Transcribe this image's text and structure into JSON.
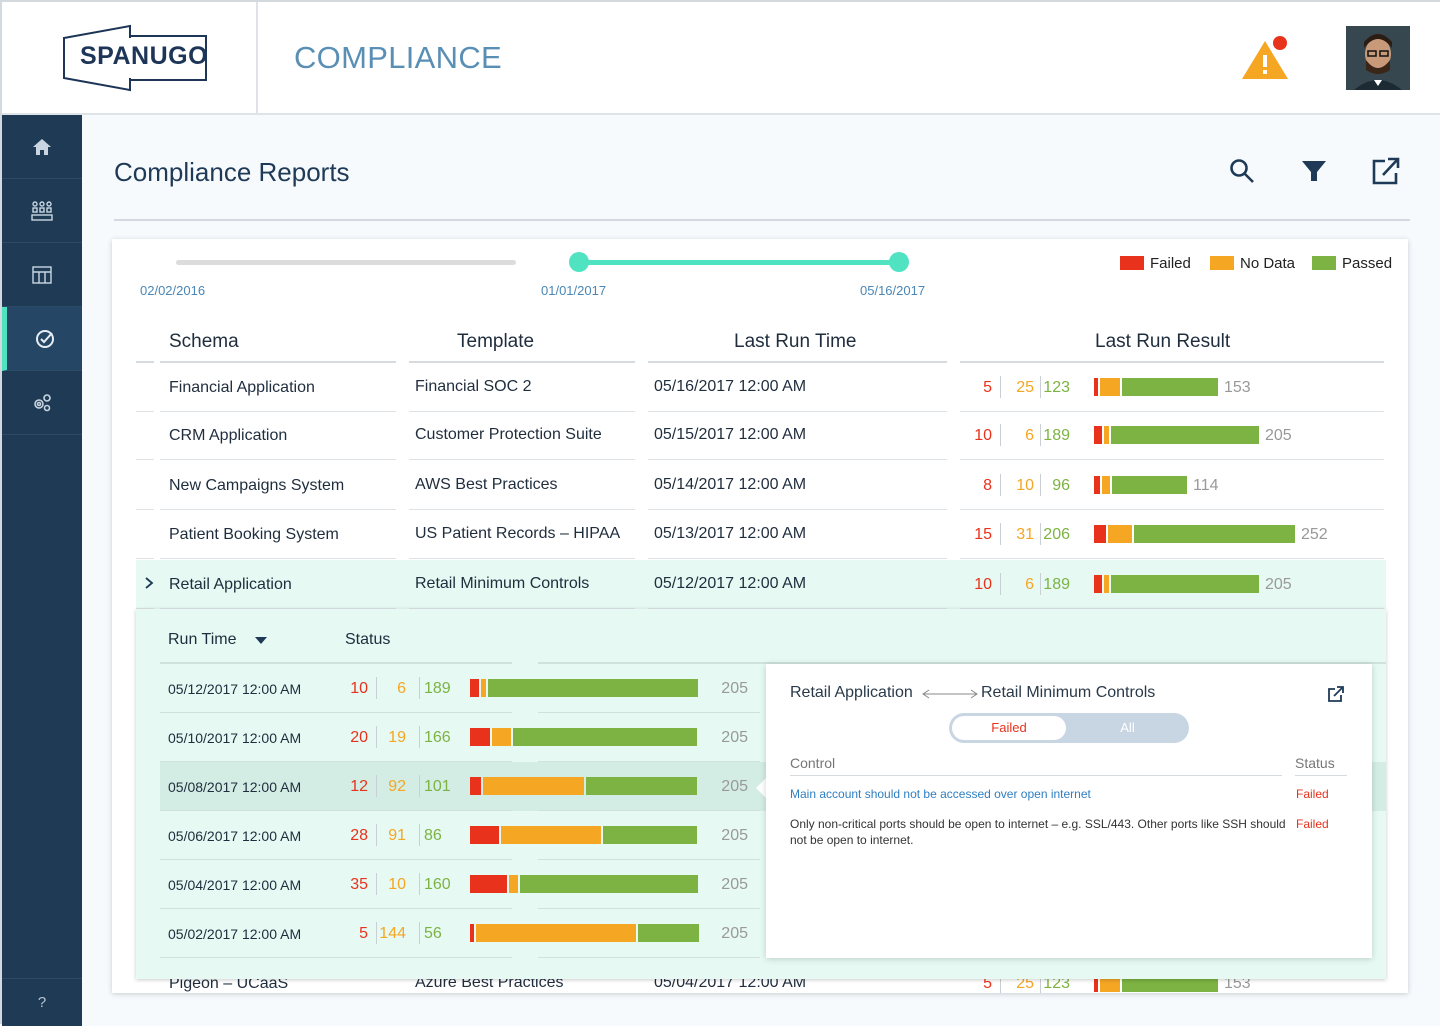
{
  "header": {
    "logo_text": "SPANUGO",
    "app_title": "COMPLIANCE",
    "alert_icon": "warning-icon",
    "brand_color": "#1d3557"
  },
  "sidebar": {
    "items": [
      {
        "name": "home",
        "icon": "home-icon"
      },
      {
        "name": "assets",
        "icon": "network-icon"
      },
      {
        "name": "dashboard",
        "icon": "layout-icon"
      },
      {
        "name": "compliance",
        "icon": "check-circle-icon",
        "active": true
      },
      {
        "name": "settings",
        "icon": "gears-icon"
      }
    ],
    "help_label": "?"
  },
  "page": {
    "title": "Compliance Reports"
  },
  "timeline": {
    "start_date": "02/02/2016",
    "range_start": "01/01/2017",
    "range_end": "05/16/2017"
  },
  "legend": {
    "failed": "Failed",
    "no_data": "No Data",
    "passed": "Passed"
  },
  "colors": {
    "failed": "#e8321c",
    "no_data": "#f5a623",
    "passed": "#7cb342",
    "accent": "#50e3c2"
  },
  "table": {
    "headers": {
      "schema": "Schema",
      "template": "Template",
      "last_run_time": "Last Run Time",
      "last_run_result": "Last Run Result"
    },
    "rows": [
      {
        "schema": "Financial Application",
        "template": "Financial SOC 2",
        "time": "05/16/2017 12:00 AM",
        "failed": "5",
        "no_data": "25",
        "passed": "123",
        "total": "153"
      },
      {
        "schema": "CRM Application",
        "template": "Customer Protection Suite",
        "time": "05/15/2017 12:00 AM",
        "failed": "10",
        "no_data": "6",
        "passed": "189",
        "total": "205"
      },
      {
        "schema": "New Campaigns System",
        "template": "AWS Best Practices",
        "time": "05/14/2017 12:00 AM",
        "failed": "8",
        "no_data": "10",
        "passed": "96",
        "total": "114"
      },
      {
        "schema": "Patient Booking System",
        "template": "US Patient Records – HIPAA",
        "time": "05/13/2017 12:00 AM",
        "failed": "15",
        "no_data": "31",
        "passed": "206",
        "total": "252"
      },
      {
        "schema": "Retail Application",
        "template": "Retail Minimum Controls",
        "time": "05/12/2017 12:00 AM",
        "failed": "10",
        "no_data": "6",
        "passed": "189",
        "total": "205",
        "expanded": true
      },
      {
        "schema": "Pigeon – UCaaS",
        "template": "Azure Best Practices",
        "time": "05/04/2017 12:00 AM",
        "failed": "5",
        "no_data": "25",
        "passed": "123",
        "total": "153"
      }
    ]
  },
  "detail": {
    "headers": {
      "run_time": "Run Time",
      "status": "Status"
    },
    "runs": [
      {
        "time": "05/12/2017 12:00 AM",
        "failed": "10",
        "no_data": "6",
        "passed": "189",
        "total": "205"
      },
      {
        "time": "05/10/2017 12:00 AM",
        "failed": "20",
        "no_data": "19",
        "passed": "166",
        "total": "205"
      },
      {
        "time": "05/08/2017 12:00 AM",
        "failed": "12",
        "no_data": "92",
        "passed": "101",
        "total": "205",
        "selected": true
      },
      {
        "time": "05/06/2017 12:00 AM",
        "failed": "28",
        "no_data": "91",
        "passed": "86",
        "total": "205"
      },
      {
        "time": "05/04/2017 12:00 AM",
        "failed": "35",
        "no_data": "10",
        "passed": "160",
        "total": "205"
      },
      {
        "time": "05/02/2017 12:00 AM",
        "failed": "5",
        "no_data": "144",
        "passed": "56",
        "total": "205"
      }
    ]
  },
  "popup": {
    "schema": "Retail Application",
    "template": "Retail Minimum Controls",
    "toggle_failed": "Failed",
    "toggle_all": "All",
    "headers": {
      "control": "Control",
      "status": "Status"
    },
    "controls": [
      {
        "text": "Main account should not be accessed over open internet",
        "status": "Failed",
        "link": true
      },
      {
        "text": "Only non-critical ports should be open to internet – e.g. SSL/443. Other ports like SSH should not be open to internet.",
        "status": "Failed",
        "link": false
      }
    ]
  }
}
